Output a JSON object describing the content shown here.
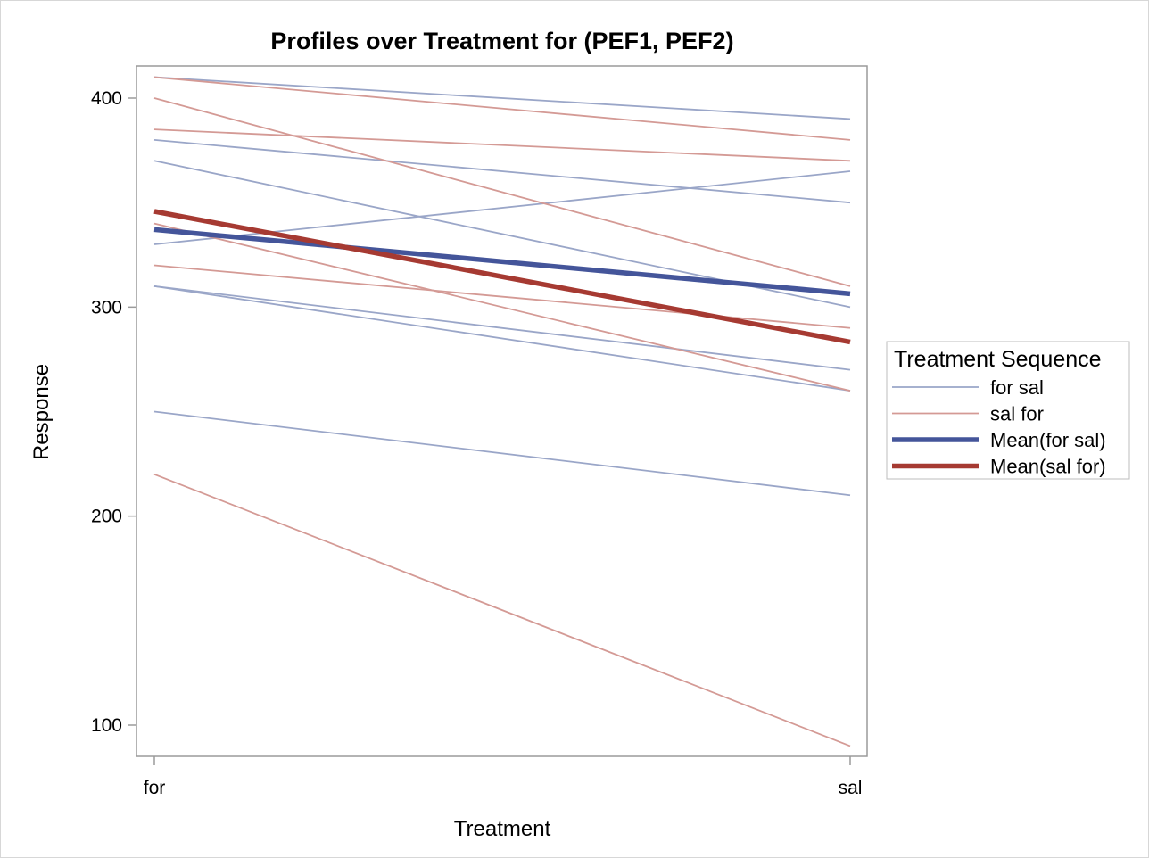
{
  "chart_data": {
    "type": "line",
    "title": "Profiles over Treatment for (PEF1, PEF2)",
    "xlabel": "Treatment",
    "ylabel": "Response",
    "categories": [
      "for",
      "sal"
    ],
    "ylim": [
      85,
      415
    ],
    "yticks": [
      100,
      200,
      300,
      400
    ],
    "grid": false,
    "legend_title": "Treatment Sequence",
    "legend_position": "right",
    "series": [
      {
        "name": "for sal",
        "color": "#9aa6c8",
        "weight": "thin",
        "profiles": [
          [
            410,
            390
          ],
          [
            380,
            350
          ],
          [
            370,
            300
          ],
          [
            330,
            365
          ],
          [
            310,
            270
          ],
          [
            310,
            260
          ],
          [
            250,
            210
          ]
        ]
      },
      {
        "name": "sal for",
        "color": "#d49a95",
        "weight": "thin",
        "profiles": [
          [
            410,
            380
          ],
          [
            400,
            310
          ],
          [
            385,
            370
          ],
          [
            340,
            260
          ],
          [
            320,
            290
          ],
          [
            220,
            90
          ]
        ]
      },
      {
        "name": "Mean(for sal)",
        "color": "#44559a",
        "weight": "thick",
        "values": [
          337.1,
          306.4
        ]
      },
      {
        "name": "Mean(sal for)",
        "color": "#a63a32",
        "weight": "thick",
        "values": [
          345.8,
          283.3
        ]
      }
    ]
  }
}
